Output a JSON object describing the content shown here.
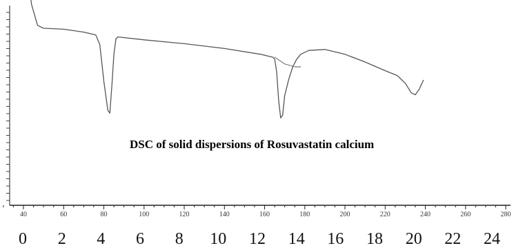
{
  "chart_data": {
    "type": "line",
    "title": "DSC of solid dispersions of Rosuvastatin calcium",
    "xlabel": "",
    "ylabel": "",
    "grid": false,
    "x_axis_top": {
      "range": [
        40,
        280
      ],
      "ticks": [
        40,
        60,
        80,
        100,
        120,
        140,
        160,
        180,
        200,
        220,
        240,
        260,
        280
      ]
    },
    "x_axis_bottom": {
      "range": [
        0,
        24
      ],
      "ticks": [
        0,
        2,
        4,
        6,
        8,
        10,
        12,
        14,
        16,
        18,
        20,
        22,
        24
      ]
    },
    "series": [
      {
        "color": "#555555",
        "x": [
          42,
          44,
          47,
          50,
          60,
          70,
          76,
          78,
          80,
          82,
          83,
          84,
          85,
          86,
          87,
          100,
          120,
          140,
          158,
          164,
          165,
          166,
          167,
          168,
          169,
          170,
          172,
          174,
          176,
          178,
          182,
          190,
          200,
          210,
          220,
          226,
          230,
          233,
          235,
          237,
          239
        ],
        "y": [
          98,
          60,
          38,
          35,
          34,
          31,
          28,
          18,
          -20,
          -50,
          -53,
          -25,
          8,
          24,
          26,
          23,
          19,
          14,
          8,
          5,
          3,
          -10,
          -40,
          -58,
          -55,
          -35,
          -18,
          -5,
          3,
          8,
          12,
          13,
          8,
          0,
          -9,
          -14,
          -22,
          -32,
          -34,
          -28,
          -19
        ]
      },
      {
        "color": "#555555",
        "style": "baseline",
        "x": [
          165,
          170,
          175,
          178
        ],
        "y": [
          5,
          -2,
          -5,
          -5
        ]
      }
    ],
    "annotations": [
      "DSC of solid dispersions of Rosuvastatin calcium"
    ]
  }
}
